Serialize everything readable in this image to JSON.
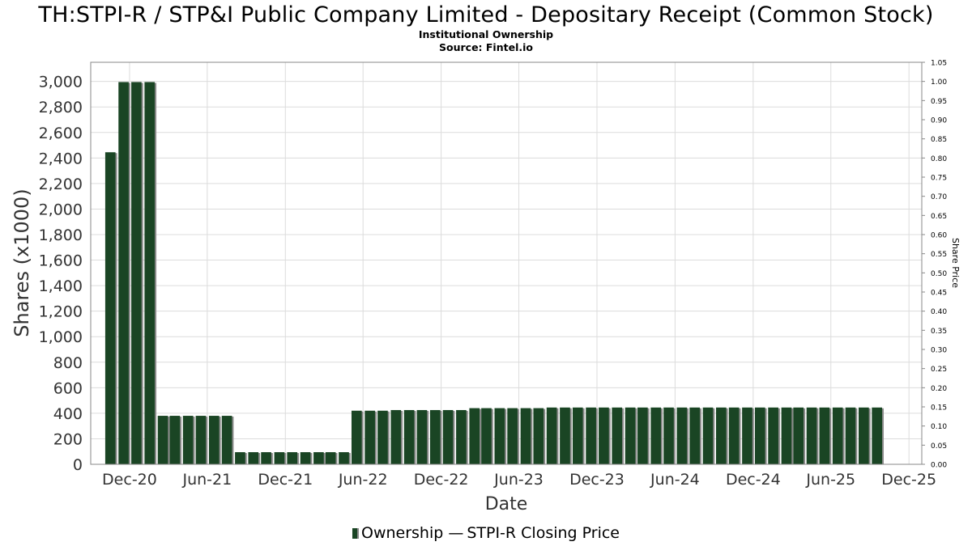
{
  "title": "TH:STPI-R / STP&I Public Company Limited - Depositary Receipt (Common Stock)",
  "subtitle": "Institutional Ownership",
  "source": "Source: Fintel.io",
  "legend": {
    "ownership": "Ownership",
    "price": "STPI-R Closing Price"
  },
  "colors": {
    "bar": "#1a4524",
    "bar_shadow": "#8a8a8a",
    "grid": "#dcdcdc",
    "axis": "#888888"
  },
  "chart_data": {
    "type": "bar",
    "xlabel": "Date",
    "ylabel": "Shares (x1000)",
    "y2label": "Share Price",
    "x_range": [
      "2020-09-01",
      "2025-12-31"
    ],
    "ylim": [
      0,
      3150
    ],
    "y2lim": [
      0,
      1.05
    ],
    "grid": true,
    "legend_position": "bottom",
    "x_ticks": [
      {
        "label": "Dec-20",
        "date": "2020-12-01"
      },
      {
        "label": "Jun-21",
        "date": "2021-06-01"
      },
      {
        "label": "Dec-21",
        "date": "2021-12-01"
      },
      {
        "label": "Jun-22",
        "date": "2022-06-01"
      },
      {
        "label": "Dec-22",
        "date": "2022-12-01"
      },
      {
        "label": "Jun-23",
        "date": "2023-06-01"
      },
      {
        "label": "Dec-23",
        "date": "2023-12-01"
      },
      {
        "label": "Jun-24",
        "date": "2024-06-01"
      },
      {
        "label": "Dec-24",
        "date": "2024-12-01"
      },
      {
        "label": "Jun-25",
        "date": "2025-06-01"
      },
      {
        "label": "Dec-25",
        "date": "2025-12-01"
      }
    ],
    "y_ticks": [
      {
        "label": "0",
        "value": 0
      },
      {
        "label": "200",
        "value": 200
      },
      {
        "label": "400",
        "value": 400
      },
      {
        "label": "600",
        "value": 600
      },
      {
        "label": "800",
        "value": 800
      },
      {
        "label": "1,000",
        "value": 1000
      },
      {
        "label": "1,200",
        "value": 1200
      },
      {
        "label": "1,400",
        "value": 1400
      },
      {
        "label": "1,600",
        "value": 1600
      },
      {
        "label": "1,800",
        "value": 1800
      },
      {
        "label": "2,000",
        "value": 2000
      },
      {
        "label": "2,200",
        "value": 2200
      },
      {
        "label": "2,400",
        "value": 2400
      },
      {
        "label": "2,600",
        "value": 2600
      },
      {
        "label": "2,800",
        "value": 2800
      },
      {
        "label": "3,000",
        "value": 3000
      }
    ],
    "y2_ticks": [
      {
        "label": "0.00",
        "value": 0
      },
      {
        "label": "0.05",
        "value": 0.05
      },
      {
        "label": "0.10",
        "value": 0.1
      },
      {
        "label": "0.15",
        "value": 0.15
      },
      {
        "label": "0.20",
        "value": 0.2
      },
      {
        "label": "0.25",
        "value": 0.25
      },
      {
        "label": "0.30",
        "value": 0.3
      },
      {
        "label": "0.35",
        "value": 0.35
      },
      {
        "label": "0.40",
        "value": 0.4
      },
      {
        "label": "0.45",
        "value": 0.45
      },
      {
        "label": "0.50",
        "value": 0.5
      },
      {
        "label": "0.55",
        "value": 0.55
      },
      {
        "label": "0.60",
        "value": 0.6
      },
      {
        "label": "0.65",
        "value": 0.65
      },
      {
        "label": "0.70",
        "value": 0.7
      },
      {
        "label": "0.75",
        "value": 0.75
      },
      {
        "label": "0.80",
        "value": 0.8
      },
      {
        "label": "0.85",
        "value": 0.85
      },
      {
        "label": "0.90",
        "value": 0.9
      },
      {
        "label": "0.95",
        "value": 0.95
      },
      {
        "label": "1.00",
        "value": 1.0
      },
      {
        "label": "1.05",
        "value": 1.05
      }
    ],
    "series": [
      {
        "name": "Ownership",
        "points": [
          {
            "x": "2020-10-17",
            "y": 2445
          },
          {
            "x": "2020-11-17",
            "y": 2995
          },
          {
            "x": "2020-12-17",
            "y": 2995
          },
          {
            "x": "2021-01-17",
            "y": 2995
          },
          {
            "x": "2021-02-17",
            "y": 380
          },
          {
            "x": "2021-03-17",
            "y": 380
          },
          {
            "x": "2021-04-17",
            "y": 380
          },
          {
            "x": "2021-05-17",
            "y": 380
          },
          {
            "x": "2021-06-17",
            "y": 380
          },
          {
            "x": "2021-07-17",
            "y": 380
          },
          {
            "x": "2021-08-17",
            "y": 95
          },
          {
            "x": "2021-09-17",
            "y": 95
          },
          {
            "x": "2021-10-17",
            "y": 95
          },
          {
            "x": "2021-11-17",
            "y": 95
          },
          {
            "x": "2021-12-17",
            "y": 95
          },
          {
            "x": "2022-01-17",
            "y": 95
          },
          {
            "x": "2022-02-17",
            "y": 95
          },
          {
            "x": "2022-03-17",
            "y": 95
          },
          {
            "x": "2022-04-17",
            "y": 95
          },
          {
            "x": "2022-05-17",
            "y": 420
          },
          {
            "x": "2022-06-17",
            "y": 420
          },
          {
            "x": "2022-07-17",
            "y": 420
          },
          {
            "x": "2022-08-17",
            "y": 425
          },
          {
            "x": "2022-09-17",
            "y": 425
          },
          {
            "x": "2022-10-17",
            "y": 425
          },
          {
            "x": "2022-11-17",
            "y": 425
          },
          {
            "x": "2022-12-17",
            "y": 425
          },
          {
            "x": "2023-01-17",
            "y": 425
          },
          {
            "x": "2023-02-17",
            "y": 440
          },
          {
            "x": "2023-03-17",
            "y": 440
          },
          {
            "x": "2023-04-17",
            "y": 440
          },
          {
            "x": "2023-05-17",
            "y": 440
          },
          {
            "x": "2023-06-17",
            "y": 440
          },
          {
            "x": "2023-07-17",
            "y": 440
          },
          {
            "x": "2023-08-17",
            "y": 445
          },
          {
            "x": "2023-09-17",
            "y": 445
          },
          {
            "x": "2023-10-17",
            "y": 445
          },
          {
            "x": "2023-11-17",
            "y": 445
          },
          {
            "x": "2023-12-17",
            "y": 445
          },
          {
            "x": "2024-01-17",
            "y": 445
          },
          {
            "x": "2024-02-17",
            "y": 445
          },
          {
            "x": "2024-03-17",
            "y": 445
          },
          {
            "x": "2024-04-17",
            "y": 445
          },
          {
            "x": "2024-05-17",
            "y": 445
          },
          {
            "x": "2024-06-17",
            "y": 445
          },
          {
            "x": "2024-07-17",
            "y": 445
          },
          {
            "x": "2024-08-17",
            "y": 445
          },
          {
            "x": "2024-09-17",
            "y": 445
          },
          {
            "x": "2024-10-17",
            "y": 445
          },
          {
            "x": "2024-11-17",
            "y": 445
          },
          {
            "x": "2024-12-17",
            "y": 445
          },
          {
            "x": "2025-01-17",
            "y": 445
          },
          {
            "x": "2025-02-17",
            "y": 445
          },
          {
            "x": "2025-03-17",
            "y": 445
          },
          {
            "x": "2025-04-17",
            "y": 445
          },
          {
            "x": "2025-05-17",
            "y": 445
          },
          {
            "x": "2025-06-17",
            "y": 445
          },
          {
            "x": "2025-07-17",
            "y": 445
          },
          {
            "x": "2025-08-17",
            "y": 445
          },
          {
            "x": "2025-09-17",
            "y": 445
          }
        ]
      }
    ]
  }
}
